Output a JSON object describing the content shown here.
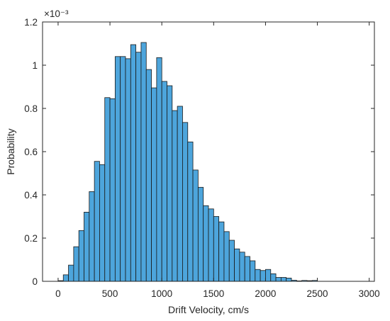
{
  "chart_data": {
    "type": "bar",
    "xlabel": "Drift Velocity, cm/s",
    "ylabel": "Probability",
    "y_exponent_label": "×10⁻³",
    "x_range": [
      -150,
      3050
    ],
    "y_range": [
      0,
      0.0012
    ],
    "x_ticks": [
      0,
      500,
      1000,
      1500,
      2000,
      2500,
      3000
    ],
    "x_tick_labels": [
      "0",
      "500",
      "1000",
      "1500",
      "2000",
      "2500",
      "3000"
    ],
    "y_ticks": [
      0,
      0.0002,
      0.0004,
      0.0006,
      0.0008,
      0.001,
      0.0012
    ],
    "y_tick_labels": [
      "0",
      "0.2",
      "0.4",
      "0.6",
      "0.8",
      "1",
      "1.2"
    ],
    "grid": false,
    "bar_color": "#4DA5DC",
    "bar_edge_color": "#1a1a1a",
    "bin_width": 50,
    "bin_starts": [
      0,
      50,
      100,
      150,
      200,
      250,
      300,
      350,
      400,
      450,
      500,
      550,
      600,
      650,
      700,
      750,
      800,
      850,
      900,
      950,
      1000,
      1050,
      1100,
      1150,
      1200,
      1250,
      1300,
      1350,
      1400,
      1450,
      1500,
      1550,
      1600,
      1650,
      1700,
      1750,
      1800,
      1850,
      1900,
      1950,
      2000,
      2050,
      2100,
      2150,
      2200,
      2250,
      2300,
      2350,
      2400,
      2450
    ],
    "values": [
      3e-06,
      3e-05,
      7.5e-05,
      0.00016,
      0.000235,
      0.00032,
      0.000415,
      0.000555,
      0.00054,
      0.00085,
      0.000845,
      0.00104,
      0.00104,
      0.00103,
      0.001095,
      0.00106,
      0.001105,
      0.00098,
      0.000895,
      0.001035,
      0.000925,
      0.000905,
      0.00079,
      0.00081,
      0.000735,
      0.000645,
      0.000515,
      0.000435,
      0.00035,
      0.000335,
      0.0003,
      0.000275,
      0.00023,
      0.00019,
      0.00015,
      0.000135,
      0.000115,
      9.5e-05,
      5.5e-05,
      5e-05,
      5.5e-05,
      3.5e-05,
      1.8e-05,
      1.8e-05,
      1.5e-05,
      5e-06,
      2e-06,
      4e-06,
      3e-06,
      4e-06
    ]
  }
}
